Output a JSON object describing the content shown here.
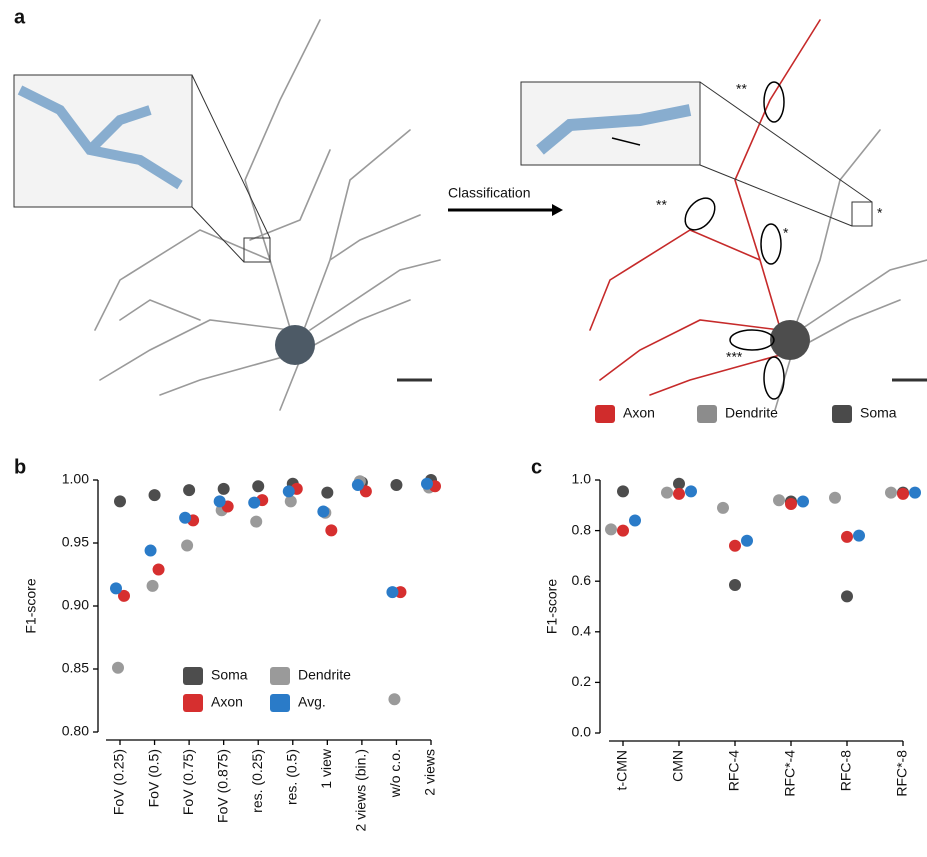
{
  "panel_a": {
    "label": "a",
    "arrow_label": "Classification",
    "annotations": [
      "**",
      "**",
      "*",
      "*",
      "***"
    ],
    "legend": [
      {
        "name": "Axon",
        "color": "#d02c2c"
      },
      {
        "name": "Dendrite",
        "color": "#8c8c8c"
      },
      {
        "name": "Soma",
        "color": "#4a4a4a"
      }
    ]
  },
  "chart_data": [
    {
      "type": "dot",
      "panel_label": "b",
      "ylabel": "F1-score",
      "categories": [
        "FoV (0.25)",
        "FoV (0.5)",
        "FoV (0.75)",
        "FoV (0.875)",
        "res. (0.25)",
        "res. (0.5)",
        "1 view",
        "2 views (bin.)",
        "w/o c.o.",
        "2 views"
      ],
      "series": [
        {
          "name": "Soma",
          "color": "#4d4d4d",
          "values": [
            0.983,
            0.988,
            0.992,
            0.993,
            0.995,
            0.997,
            0.99,
            0.998,
            0.996,
            1.0
          ]
        },
        {
          "name": "Dendrite",
          "color": "#9a9a9a",
          "values": [
            0.851,
            0.916,
            0.948,
            0.976,
            0.967,
            0.983,
            0.974,
            0.999,
            0.826,
            0.994
          ]
        },
        {
          "name": "Axon",
          "color": "#d62f2f",
          "values": [
            0.908,
            0.929,
            0.968,
            0.979,
            0.984,
            0.993,
            0.96,
            0.991,
            0.911,
            0.995
          ]
        },
        {
          "name": "Avg.",
          "color": "#2a7bc8",
          "values": [
            0.914,
            0.944,
            0.97,
            0.983,
            0.982,
            0.991,
            0.975,
            0.996,
            0.911,
            0.997
          ]
        }
      ],
      "ylim": [
        0.8,
        1.0
      ],
      "yticks": [
        {
          "value": 0.8,
          "label": "0.80"
        },
        0.85,
        {
          "value": 0.9,
          "label": "0.90"
        },
        0.95,
        {
          "value": 1.0,
          "label": "1.00"
        }
      ],
      "legend": true
    },
    {
      "type": "dot",
      "panel_label": "c",
      "ylabel": "F1-score",
      "categories": [
        "t-CMN",
        "CMN",
        "RFC-4",
        "RFC*-4",
        "RFC-8",
        "RFC*-8"
      ],
      "series": [
        {
          "name": "Soma",
          "color": "#4d4d4d",
          "values": [
            0.955,
            0.985,
            0.585,
            0.915,
            0.54,
            0.95
          ]
        },
        {
          "name": "Dendrite",
          "color": "#9a9a9a",
          "values": [
            0.805,
            0.95,
            0.89,
            0.92,
            0.93,
            0.95
          ]
        },
        {
          "name": "Axon",
          "color": "#d62f2f",
          "values": [
            0.8,
            0.945,
            0.74,
            0.905,
            0.775,
            0.945
          ]
        },
        {
          "name": "Avg.",
          "color": "#2a7bc8",
          "values": [
            0.84,
            0.955,
            0.76,
            0.915,
            0.78,
            0.95
          ]
        }
      ],
      "ylim": [
        0,
        1.0
      ],
      "yticks": [
        {
          "value": 0,
          "label": "0.0"
        },
        0.2,
        0.4,
        0.6,
        0.8,
        {
          "value": 1.0,
          "label": "1.0"
        }
      ],
      "legend": false
    }
  ]
}
